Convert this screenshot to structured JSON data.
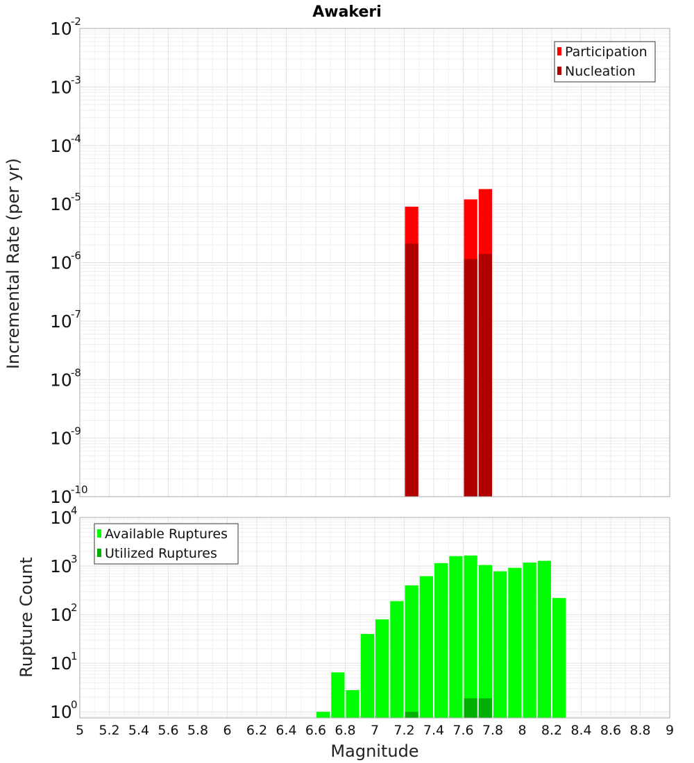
{
  "chart_data": [
    {
      "type": "bar",
      "title": "Awakeri",
      "xlabel": "",
      "ylabel": "Incremental Rate (per yr)",
      "yscale": "log",
      "ylim": [
        1e-10,
        0.01
      ],
      "xlim": [
        5,
        9
      ],
      "legend": "top-right",
      "grid": true,
      "bin_width": 0.1,
      "series": [
        {
          "name": "Participation",
          "color": "#ff0000",
          "points": [
            [
              7.25,
              9e-06
            ],
            [
              7.65,
              1.2e-05
            ],
            [
              7.75,
              1.8e-05
            ]
          ]
        },
        {
          "name": "Nucleation",
          "color": "#b00000",
          "points": [
            [
              7.25,
              2.1e-06
            ],
            [
              7.65,
              1.15e-06
            ],
            [
              7.75,
              1.4e-06
            ]
          ]
        }
      ]
    },
    {
      "type": "bar",
      "title": "",
      "xlabel": "Magnitude",
      "ylabel": "Rupture Count",
      "yscale": "log",
      "ylim": [
        0.75,
        10000
      ],
      "xlim": [
        5,
        9
      ],
      "legend": "top-left",
      "grid": true,
      "bin_width": 0.1,
      "series": [
        {
          "name": "Available Ruptures",
          "color": "#00ff00",
          "points": [
            [
              6.65,
              1
            ],
            [
              6.75,
              6.5
            ],
            [
              6.85,
              2.8
            ],
            [
              6.95,
              40
            ],
            [
              7.05,
              80
            ],
            [
              7.15,
              190
            ],
            [
              7.25,
              400
            ],
            [
              7.35,
              620
            ],
            [
              7.45,
              1150
            ],
            [
              7.55,
              1600
            ],
            [
              7.65,
              1650
            ],
            [
              7.75,
              1050
            ],
            [
              7.85,
              780
            ],
            [
              7.95,
              920
            ],
            [
              8.05,
              1180
            ],
            [
              8.15,
              1280
            ],
            [
              8.25,
              220
            ]
          ]
        },
        {
          "name": "Utilized Ruptures",
          "color": "#00b000",
          "points": [
            [
              7.25,
              1
            ],
            [
              7.65,
              1.9
            ],
            [
              7.75,
              1.9
            ]
          ]
        }
      ]
    }
  ],
  "x_ticks": [
    "5",
    "5.2",
    "5.4",
    "5.6",
    "5.8",
    "6",
    "6.2",
    "6.4",
    "6.6",
    "6.8",
    "7",
    "7.2",
    "7.4",
    "7.6",
    "7.8",
    "8",
    "8.2",
    "8.4",
    "8.6",
    "8.8",
    "9"
  ],
  "top_y_ticks": [
    -2,
    -3,
    -4,
    -5,
    -6,
    -7,
    -8,
    -9,
    -10
  ],
  "bottom_y_ticks": [
    4,
    3,
    2,
    1,
    0
  ]
}
